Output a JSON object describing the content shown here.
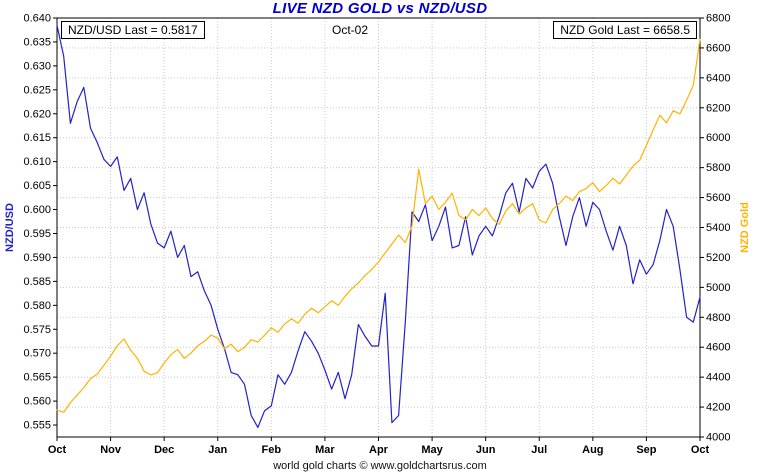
{
  "title": "LIVE NZD GOLD vs NZD/USD",
  "header": {
    "left_label": "NZD/USD Last = 0.5817",
    "center_label": "Oct-02",
    "right_label": "NZD Gold Last = 6658.5"
  },
  "footer": "world gold charts © www.goldchartsrus.com",
  "colors": {
    "title": "#0000cc",
    "nzdusd_line": "#2222cc",
    "gold_line": "#ffb300",
    "grid": "#c9c9c9",
    "axis": "#000000"
  },
  "chart_data": {
    "type": "line",
    "title": "LIVE NZD GOLD vs NZD/USD",
    "subtitle": "Oct-02",
    "grid": true,
    "legend_position": "none",
    "x_ticks": [
      "Oct",
      "Nov",
      "Dec",
      "Jan",
      "Feb",
      "Mar",
      "Apr",
      "May",
      "Jun",
      "Jul",
      "Aug",
      "Sep",
      "Oct"
    ],
    "left_axis": {
      "label": "NZD/USD",
      "min": 0.5525,
      "max": 0.64,
      "tick_step": 0.005,
      "ticks": [
        "0.640",
        "0.635",
        "0.630",
        "0.625",
        "0.620",
        "0.615",
        "0.610",
        "0.605",
        "0.600",
        "0.595",
        "0.590",
        "0.585",
        "0.580",
        "0.575",
        "0.570",
        "0.565",
        "0.560",
        "0.555"
      ]
    },
    "right_axis": {
      "label": "NZD Gold",
      "min": 4000,
      "max": 6800,
      "tick_step": 200,
      "ticks": [
        "6800",
        "6600",
        "6400",
        "6200",
        "6000",
        "5800",
        "5600",
        "5400",
        "5200",
        "5000",
        "4800",
        "4600",
        "4400",
        "4200",
        "4000"
      ]
    },
    "series": [
      {
        "name": "NZD/USD",
        "axis": "left",
        "color": "#2222cc",
        "last_value": 0.5817,
        "values": [
          0.6385,
          0.632,
          0.618,
          0.6225,
          0.6255,
          0.617,
          0.614,
          0.6105,
          0.609,
          0.611,
          0.604,
          0.6065,
          0.6,
          0.6035,
          0.597,
          0.593,
          0.592,
          0.5955,
          0.59,
          0.5925,
          0.586,
          0.587,
          0.583,
          0.58,
          0.575,
          0.571,
          0.566,
          0.5655,
          0.5635,
          0.557,
          0.5545,
          0.558,
          0.559,
          0.5655,
          0.5635,
          0.566,
          0.5705,
          0.5745,
          0.5725,
          0.57,
          0.5665,
          0.5625,
          0.566,
          0.5605,
          0.5655,
          0.576,
          0.5735,
          0.5715,
          0.5715,
          0.5825,
          0.5555,
          0.557,
          0.5765,
          0.5995,
          0.5975,
          0.601,
          0.5935,
          0.5965,
          0.6005,
          0.592,
          0.5925,
          0.5985,
          0.5905,
          0.5945,
          0.5965,
          0.5945,
          0.5985,
          0.6035,
          0.6055,
          0.5995,
          0.6065,
          0.6045,
          0.608,
          0.6095,
          0.6055,
          0.5985,
          0.5925,
          0.5985,
          0.6025,
          0.5965,
          0.6015,
          0.6,
          0.5955,
          0.5915,
          0.5965,
          0.5925,
          0.5845,
          0.5895,
          0.5865,
          0.5885,
          0.5935,
          0.6,
          0.5965,
          0.5875,
          0.5775,
          0.5765,
          0.5817
        ]
      },
      {
        "name": "NZD Gold",
        "axis": "right",
        "color": "#ffb300",
        "last_value": 6658.5,
        "values": [
          4180,
          4165,
          4230,
          4280,
          4330,
          4390,
          4420,
          4480,
          4540,
          4610,
          4655,
          4580,
          4525,
          4440,
          4415,
          4430,
          4495,
          4550,
          4585,
          4525,
          4560,
          4610,
          4640,
          4680,
          4660,
          4590,
          4620,
          4570,
          4600,
          4650,
          4635,
          4680,
          4730,
          4700,
          4755,
          4790,
          4760,
          4820,
          4860,
          4830,
          4870,
          4910,
          4880,
          4940,
          4990,
          5030,
          5080,
          5120,
          5170,
          5230,
          5290,
          5350,
          5300,
          5410,
          5790,
          5560,
          5610,
          5520,
          5570,
          5630,
          5480,
          5450,
          5520,
          5480,
          5530,
          5460,
          5420,
          5510,
          5560,
          5490,
          5530,
          5560,
          5450,
          5430,
          5520,
          5560,
          5610,
          5580,
          5640,
          5660,
          5700,
          5640,
          5680,
          5730,
          5690,
          5750,
          5810,
          5850,
          5950,
          6050,
          6150,
          6100,
          6180,
          6160,
          6250,
          6350,
          6658.5
        ]
      }
    ]
  }
}
